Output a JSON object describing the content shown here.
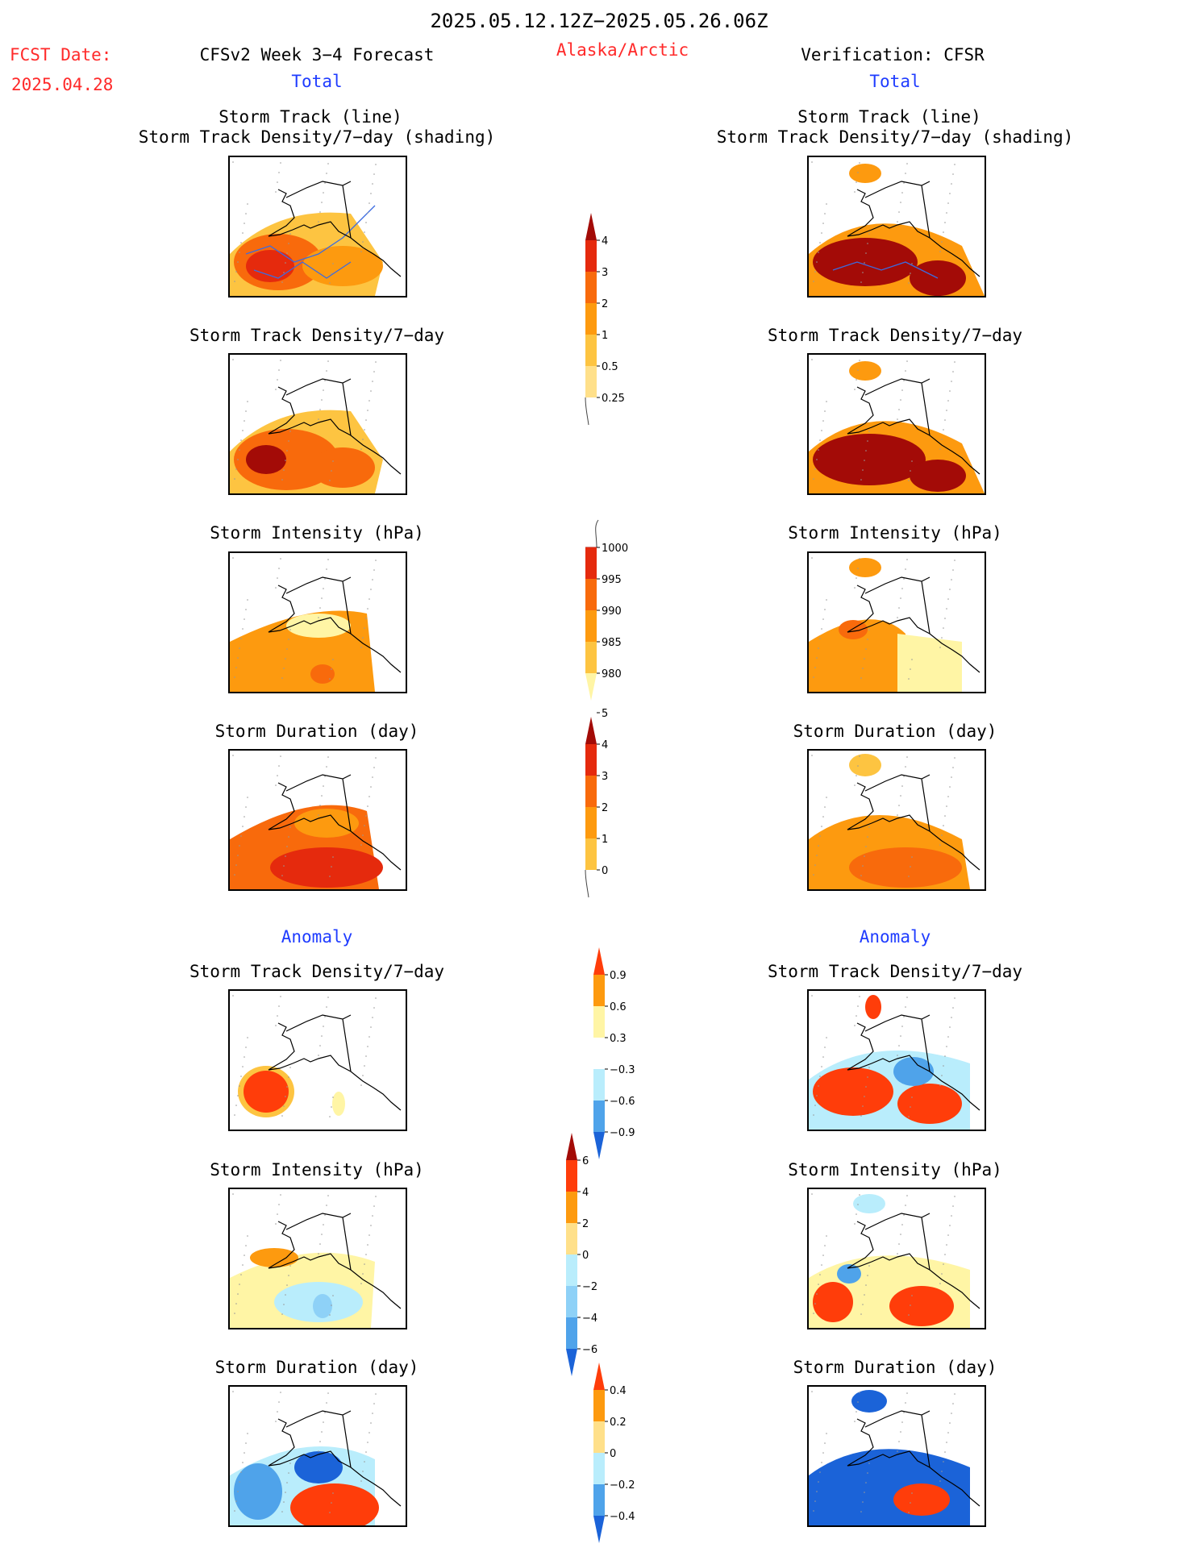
{
  "header": {
    "date_range": "2025.05.12.12Z−2025.05.26.06Z",
    "fcst_date_label": "FCST Date:",
    "fcst_date_value": "2025.04.28",
    "product_title": "CFSv2 Week 3−4 Forecast",
    "region": "Alaska/Arctic",
    "verification_label": "Verification: CFSR",
    "left_total": "Total",
    "right_total": "Total",
    "left_anomaly": "Anomaly",
    "right_anomaly": "Anomaly"
  },
  "panel_titles": {
    "track_line": "Storm Track (line)",
    "track_shading": "Storm Track Density/7−day (shading)",
    "density": "Storm Track Density/7−day",
    "intensity": "Storm Intensity (hPa)",
    "duration": "Storm Duration (day)"
  },
  "colors": {
    "pale_yellow": "#fff5a5",
    "light_yellow": "#ffe08a",
    "yellow_orange": "#fdc441",
    "orange": "#fd9a0f",
    "dark_orange": "#f86a0c",
    "red": "#e52a0d",
    "dark_red": "#a30b07",
    "red_anom": "#ff3d0a",
    "light_blue": "#b9edfc",
    "mid_blue": "#8ed1f7",
    "blue": "#4fa3ea",
    "dark_blue": "#1b63d8",
    "track_line": "#3c6be0"
  },
  "chart_data": [
    {
      "type": "colorbar",
      "name": "total_density",
      "ticks": [
        "0.25",
        "0.5",
        "1",
        "2",
        "3",
        "4"
      ],
      "colors": [
        "#fff5a5",
        "#ffe08a",
        "#fdc441",
        "#fd9a0f",
        "#f86a0c",
        "#e52a0d",
        "#a30b07"
      ]
    },
    {
      "type": "colorbar",
      "name": "total_intensity",
      "ticks": [
        "1000",
        "995",
        "990",
        "985",
        "980"
      ],
      "colors": [
        "#fff5a5",
        "#fdc441",
        "#fd9a0f",
        "#f86a0c",
        "#e52a0d",
        "#a30b07"
      ]
    },
    {
      "type": "colorbar",
      "name": "total_duration",
      "ticks": [
        "0",
        "1",
        "2",
        "3",
        "4",
        "5"
      ],
      "colors": [
        "#fff5a5",
        "#fdc441",
        "#fd9a0f",
        "#f86a0c",
        "#e52a0d",
        "#a30b07"
      ]
    },
    {
      "type": "colorbar",
      "name": "anom_density",
      "ticks": [
        "−0.9",
        "−0.6",
        "−0.3",
        "0.3",
        "0.6",
        "0.9"
      ],
      "colors": [
        "#1b63d8",
        "#4fa3ea",
        "#b9edfc",
        "#ffffff",
        "#fff5a5",
        "#fd9a0f",
        "#ff3d0a"
      ]
    },
    {
      "type": "colorbar",
      "name": "anom_intensity",
      "ticks": [
        "−6",
        "−4",
        "−2",
        "0",
        "2",
        "4",
        "6"
      ],
      "colors": [
        "#1b63d8",
        "#4fa3ea",
        "#8ed1f7",
        "#b9edfc",
        "#ffe08a",
        "#fd9a0f",
        "#ff3d0a",
        "#a30b07"
      ]
    },
    {
      "type": "colorbar",
      "name": "anom_duration",
      "ticks": [
        "−0.4",
        "−0.2",
        "0",
        "0.2",
        "0.4"
      ],
      "colors": [
        "#1b63d8",
        "#4fa3ea",
        "#b9edfc",
        "#ffe08a",
        "#fd9a0f",
        "#ff3d0a"
      ]
    }
  ]
}
